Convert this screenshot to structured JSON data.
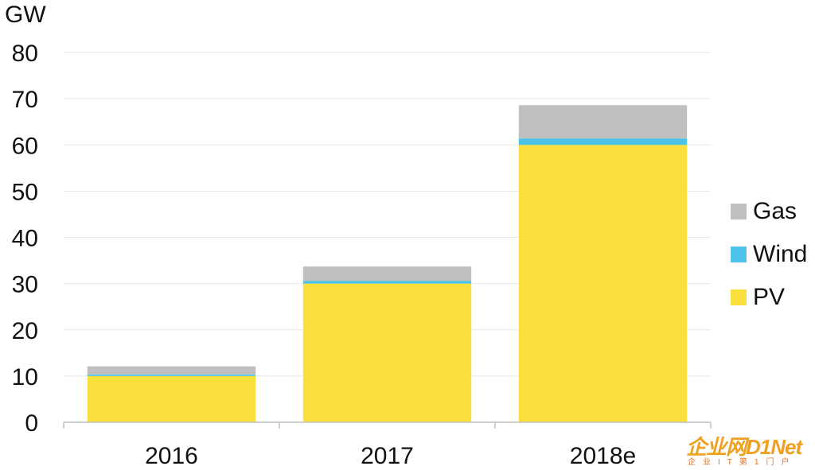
{
  "chart_data": {
    "type": "bar",
    "stacked": true,
    "categories": [
      "2016",
      "2017",
      "2018e"
    ],
    "series": [
      {
        "name": "PV",
        "values": [
          10,
          30,
          60
        ],
        "color": "#f9e03c"
      },
      {
        "name": "Wind",
        "values": [
          0.3,
          0.6,
          1.4
        ],
        "color": "#4dc3e8"
      },
      {
        "name": "Gas",
        "values": [
          1.8,
          3.1,
          7.2
        ],
        "color": "#c0c0c0"
      }
    ],
    "ylabel": "GW",
    "ylim": [
      0,
      80
    ],
    "yticks": [
      0,
      10,
      20,
      30,
      40,
      50,
      60,
      70,
      80
    ],
    "grid": true,
    "legend_position": "right",
    "legend_order": [
      "Gas",
      "Wind",
      "PV"
    ]
  },
  "watermark": {
    "logo": "企业网D1Net",
    "tagline": "企业IT第1门户"
  }
}
